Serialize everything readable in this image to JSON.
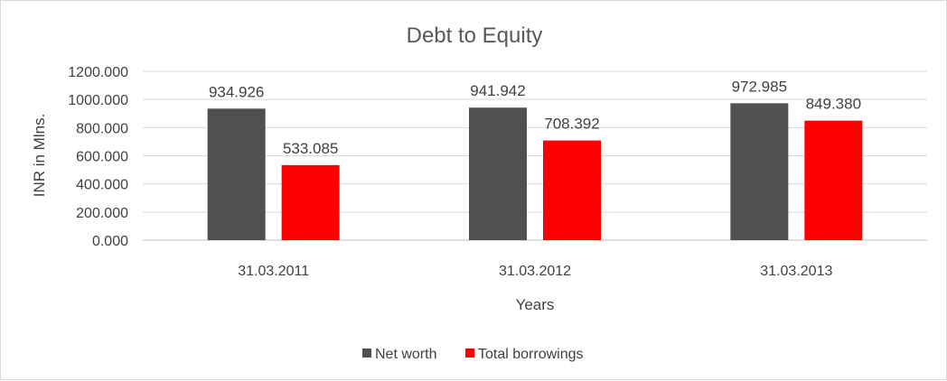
{
  "chart_data": {
    "type": "bar",
    "title": "Debt to Equity",
    "xlabel": "Years",
    "ylabel": "INR in Mlns.",
    "categories": [
      "31.03.2011",
      "31.03.2012",
      "31.03.2013"
    ],
    "series": [
      {
        "name": "Net worth",
        "values": [
          934.926,
          941.942,
          972.985
        ],
        "color": "#505050"
      },
      {
        "name": "Total borrowings",
        "values": [
          533.085,
          708.392,
          849.38
        ],
        "color": "#ff0000"
      }
    ],
    "ylim": [
      0,
      1200
    ],
    "yticks": [
      "0.000",
      "200.000",
      "400.000",
      "600.000",
      "800.000",
      "1000.000",
      "1200.000"
    ],
    "data_labels": [
      [
        "934.926",
        "941.942",
        "972.985"
      ],
      [
        "533.085",
        "708.392",
        "849.380"
      ]
    ],
    "grid": true,
    "legend_position": "bottom"
  }
}
